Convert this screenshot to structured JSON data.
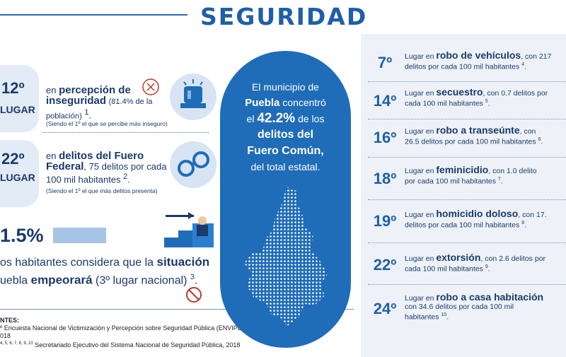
{
  "title": "SEGURIDAD",
  "left": {
    "row1": {
      "rank": "12º",
      "lugar": "LUGAR",
      "pre": "en",
      "bold": "percepción de inseguridad",
      "rest": "(81.4% de la población)",
      "sup": "1",
      "note": "(Siendo el 1º el que se percibe más inseguro)"
    },
    "row2": {
      "rank": "22º",
      "lugar": "LUGAR",
      "pre": "en",
      "bold": "delitos del Fuero Federal",
      "rest": ", 75 delitos por cada 100 mil habitantes",
      "sup": "2",
      "note": "(Siendo el 1º el que más delitos presenta)"
    },
    "stat": {
      "pct": "1.5%",
      "line1_pre": "os habitantes considera que la",
      "line1_bold": "situación",
      "line2_pre": "uebla",
      "line2_bold": "empeorará",
      "line2_rest": "(3º lugar nacional)",
      "sup": "3"
    },
    "fuentes": {
      "heading": "NTES:",
      "line1": "º Encuesta Nacional de Victimización y Percepción sobre Seguridad Pública (ENVIPE),",
      "line2": "018",
      "line3_sup": "4, 5, 6, 7, 8, 9, 10",
      "line3": "Secretariado Ejecutivo del Sistema Nacional de Seguridad Pública, 2018"
    }
  },
  "pill": {
    "line1": "El municipio de",
    "line2_bold": "Puebla",
    "line2_rest": "concentró",
    "line3_pre": "el",
    "line3_big": "42.2%",
    "line3_rest": "de los",
    "line4": "delitos del",
    "line5": "Fuero Común,",
    "line6": "del total estatal."
  },
  "right": [
    {
      "rank": "7º",
      "pre": "Lugar en",
      "bold": "robo de vehículos",
      "rest": ", con 217",
      "line2": "delitos por cada 100 mil habitantes",
      "sup": "4"
    },
    {
      "rank": "14º",
      "pre": "Lugar en",
      "bold": "secuestro",
      "rest": ", con 0.7 delitos por",
      "line2": "cada 100 mil habitantes",
      "sup": "5"
    },
    {
      "rank": "16º",
      "pre": "Lugar en",
      "bold": "robo a transeúnte",
      "rest": ", con",
      "line2": "26.5 delitos por cada 100 mil habitantes",
      "sup": "6"
    },
    {
      "rank": "18º",
      "pre": "Lugar en",
      "bold": "feminicidio",
      "rest": ", con 1.0 delito",
      "line2": "por cada 100 mil habitantes",
      "sup": "7"
    },
    {
      "rank": "19º",
      "pre": "Lugar en",
      "bold": "homicidio doloso",
      "rest": ", con 17.",
      "line2": "delitos por cada 100 mil habitantes",
      "sup": "8"
    },
    {
      "rank": "22º",
      "pre": "Lugar en",
      "bold": "extorsión",
      "rest": ", con 2.6 delitos por",
      "line2": "cada 100 mil habitantes",
      "sup": "9"
    },
    {
      "rank": "24º",
      "pre": "Lugar en",
      "bold": "robo a casa habitación",
      "rest": "",
      "line2": "con 34.6 delitos por cada 100 mil",
      "line3": "habitantes",
      "sup": "10"
    }
  ],
  "colors": {
    "accent": "#1f6cb8",
    "title": "#1f5fa8",
    "text": "#1a3a6b"
  }
}
